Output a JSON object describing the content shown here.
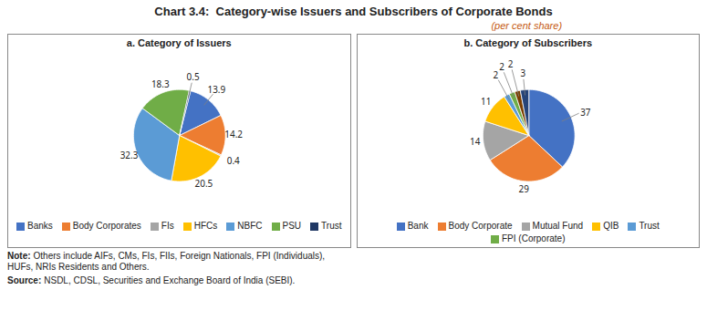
{
  "title": "Chart 3.4:  Category-wise Issuers and Subscribers of Corporate Bonds",
  "subtitle": "(per cent share)",
  "note_label": "Note:",
  "note": "Others include AIFs, CMs, FIs, FIIs, Foreign Nationals, FPI (Individuals),\nHUFs, NRIs Residents and Others.",
  "source_label": "Source:",
  "source": "NSDL, CDSL, Securities and Exchange Board of India (SEBI).",
  "chart_data": [
    {
      "type": "pie",
      "title": "a. Category of Issuers",
      "categories": [
        "Banks",
        "Body Corporates",
        "FIs",
        "HFCs",
        "NBFC",
        "PSU",
        "Trust"
      ],
      "values": [
        13.9,
        14.2,
        0.4,
        20.5,
        32.3,
        18.3,
        0.5
      ],
      "colors": [
        "#4472C4",
        "#ED7D31",
        "#A5A5A5",
        "#FFC000",
        "#5B9BD5",
        "#70AD47",
        "#1F3864"
      ],
      "data_labels": true,
      "legend": "bottom"
    },
    {
      "type": "pie",
      "title": "b. Category of Subscribers",
      "categories": [
        "Bank",
        "Body Corporate",
        "Mutual Fund",
        "QIB",
        "Trust",
        "FPI (Corporate)",
        null,
        null
      ],
      "values": [
        37,
        29,
        14,
        11,
        2,
        2,
        2,
        3
      ],
      "colors": [
        "#4472C4",
        "#ED7D31",
        "#A5A5A5",
        "#FFC000",
        "#5B9BD5",
        "#70AD47",
        "#7B3F00",
        "#264478"
      ],
      "data_labels": true,
      "legend": "bottom"
    }
  ]
}
